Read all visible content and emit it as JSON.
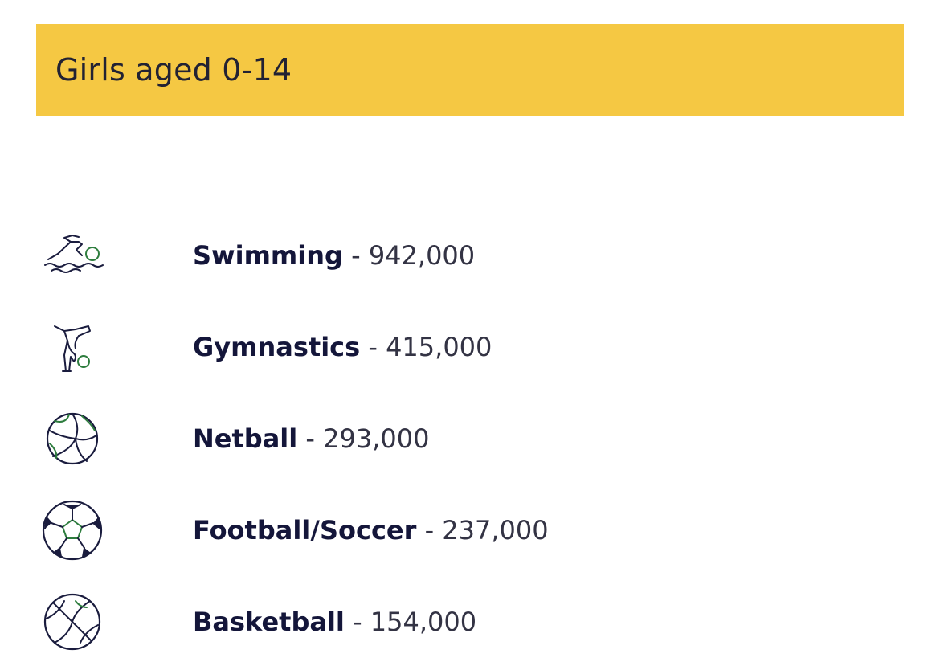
{
  "header": {
    "title": "Girls aged 0-14",
    "background_color": "#F5C843"
  },
  "colors": {
    "icon_stroke": "#1A1C3E",
    "icon_accent": "#2E7D3E",
    "text": "#14163A"
  },
  "separator": " - ",
  "sports": [
    {
      "name": "Swimming",
      "count": "942,000",
      "icon": "swimmer-icon"
    },
    {
      "name": "Gymnastics",
      "count": "415,000",
      "icon": "gymnast-icon"
    },
    {
      "name": "Netball",
      "count": "293,000",
      "icon": "netball-icon"
    },
    {
      "name": "Football/Soccer",
      "count": "237,000",
      "icon": "soccer-ball-icon"
    },
    {
      "name": "Basketball",
      "count": "154,000",
      "icon": "basketball-icon"
    }
  ]
}
